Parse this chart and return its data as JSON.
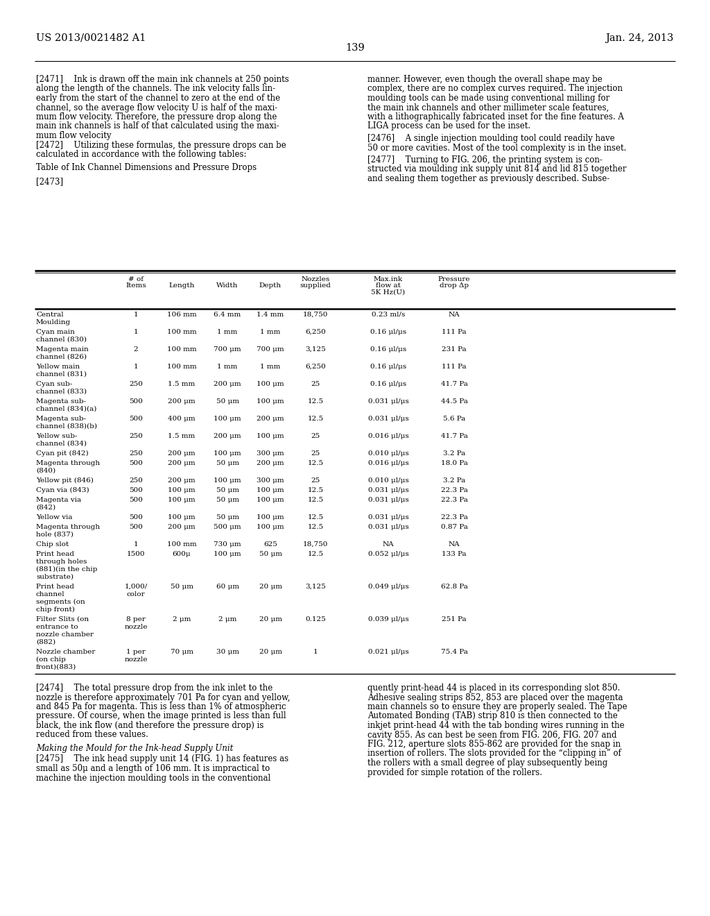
{
  "page_header_left": "US 2013/0021482 A1",
  "page_header_right": "Jan. 24, 2013",
  "page_number": "139",
  "bg_color": "#ffffff",
  "text_color": "#000000",
  "table_rows": [
    [
      "Central\nMoulding",
      "1",
      "106 mm",
      "6.4 mm",
      "1.4 mm",
      "18,750",
      "0.23 ml/s",
      "NA"
    ],
    [
      "Cyan main\nchannel (830)",
      "1",
      "100 mm",
      "1 mm",
      "1 mm",
      "6,250",
      "0.16 μl/μs",
      "111 Pa"
    ],
    [
      "Magenta main\nchannel (826)",
      "2",
      "100 mm",
      "700 μm",
      "700 μm",
      "3,125",
      "0.16 μl/μs",
      "231 Pa"
    ],
    [
      "Yellow main\nchannel (831)",
      "1",
      "100 mm",
      "1 mm",
      "1 mm",
      "6,250",
      "0.16 μl/μs",
      "111 Pa"
    ],
    [
      "Cyan sub-\nchannel (833)",
      "250",
      "1.5 mm",
      "200 μm",
      "100 μm",
      "25",
      "0.16 μl/μs",
      "41.7 Pa"
    ],
    [
      "Magenta sub-\nchannel (834)(a)",
      "500",
      "200 μm",
      "50 μm",
      "100 μm",
      "12.5",
      "0.031 μl/μs",
      "44.5 Pa"
    ],
    [
      "Magenta sub-\nchannel (838)(b)",
      "500",
      "400 μm",
      "100 μm",
      "200 μm",
      "12.5",
      "0.031 μl/μs",
      "5.6 Pa"
    ],
    [
      "Yellow sub-\nchannel (834)",
      "250",
      "1.5 mm",
      "200 μm",
      "100 μm",
      "25",
      "0.016 μl/μs",
      "41.7 Pa"
    ],
    [
      "Cyan pit (842)",
      "250",
      "200 μm",
      "100 μm",
      "300 μm",
      "25",
      "0.010 μl/μs",
      "3.2 Pa"
    ],
    [
      "Magenta through\n(840)",
      "500",
      "200 μm",
      "50 μm",
      "200 μm",
      "12.5",
      "0.016 μl/μs",
      "18.0 Pa"
    ],
    [
      "Yellow pit (846)",
      "250",
      "200 μm",
      "100 μm",
      "300 μm",
      "25",
      "0.010 μl/μs",
      "3.2 Pa"
    ],
    [
      "Cyan via (843)",
      "500",
      "100 μm",
      "50 μm",
      "100 μm",
      "12.5",
      "0.031 μl/μs",
      "22.3 Pa"
    ],
    [
      "Magenta via\n(842)",
      "500",
      "100 μm",
      "50 μm",
      "100 μm",
      "12.5",
      "0.031 μl/μs",
      "22.3 Pa"
    ],
    [
      "Yellow via",
      "500",
      "100 μm",
      "50 μm",
      "100 μm",
      "12.5",
      "0.031 μl/μs",
      "22.3 Pa"
    ],
    [
      "Magenta through\nhole (837)",
      "500",
      "200 μm",
      "500 μm",
      "100 μm",
      "12.5",
      "0.031 μl/μs",
      "0.87 Pa"
    ],
    [
      "Chip slot",
      "1",
      "100 mm",
      "730 μm",
      "625",
      "18,750",
      "NA",
      "NA"
    ],
    [
      "Print head\nthrough holes\n(881)(in the chip\nsubstrate)",
      "1500",
      "600μ",
      "100 μm",
      "50 μm",
      "12.5",
      "0.052 μl/μs",
      "133 Pa"
    ],
    [
      "Print head\nchannel\nsegments (on\nchip front)",
      "1,000/\ncolor",
      "50 μm",
      "60 μm",
      "20 μm",
      "3,125",
      "0.049 μl/μs",
      "62.8 Pa"
    ],
    [
      "Filter Slits (on\nentrance to\nnozzle chamber\n(882)",
      "8 per\nnozzle",
      "2 μm",
      "2 μm",
      "20 μm",
      "0.125",
      "0.039 μl/μs",
      "251 Pa"
    ],
    [
      "Nozzle chamber\n(on chip\nfront)(883)",
      "1 per\nnozzle",
      "70 μm",
      "30 μm",
      "20 μm",
      "1",
      "0.021 μl/μs",
      "75.4 Pa"
    ]
  ]
}
